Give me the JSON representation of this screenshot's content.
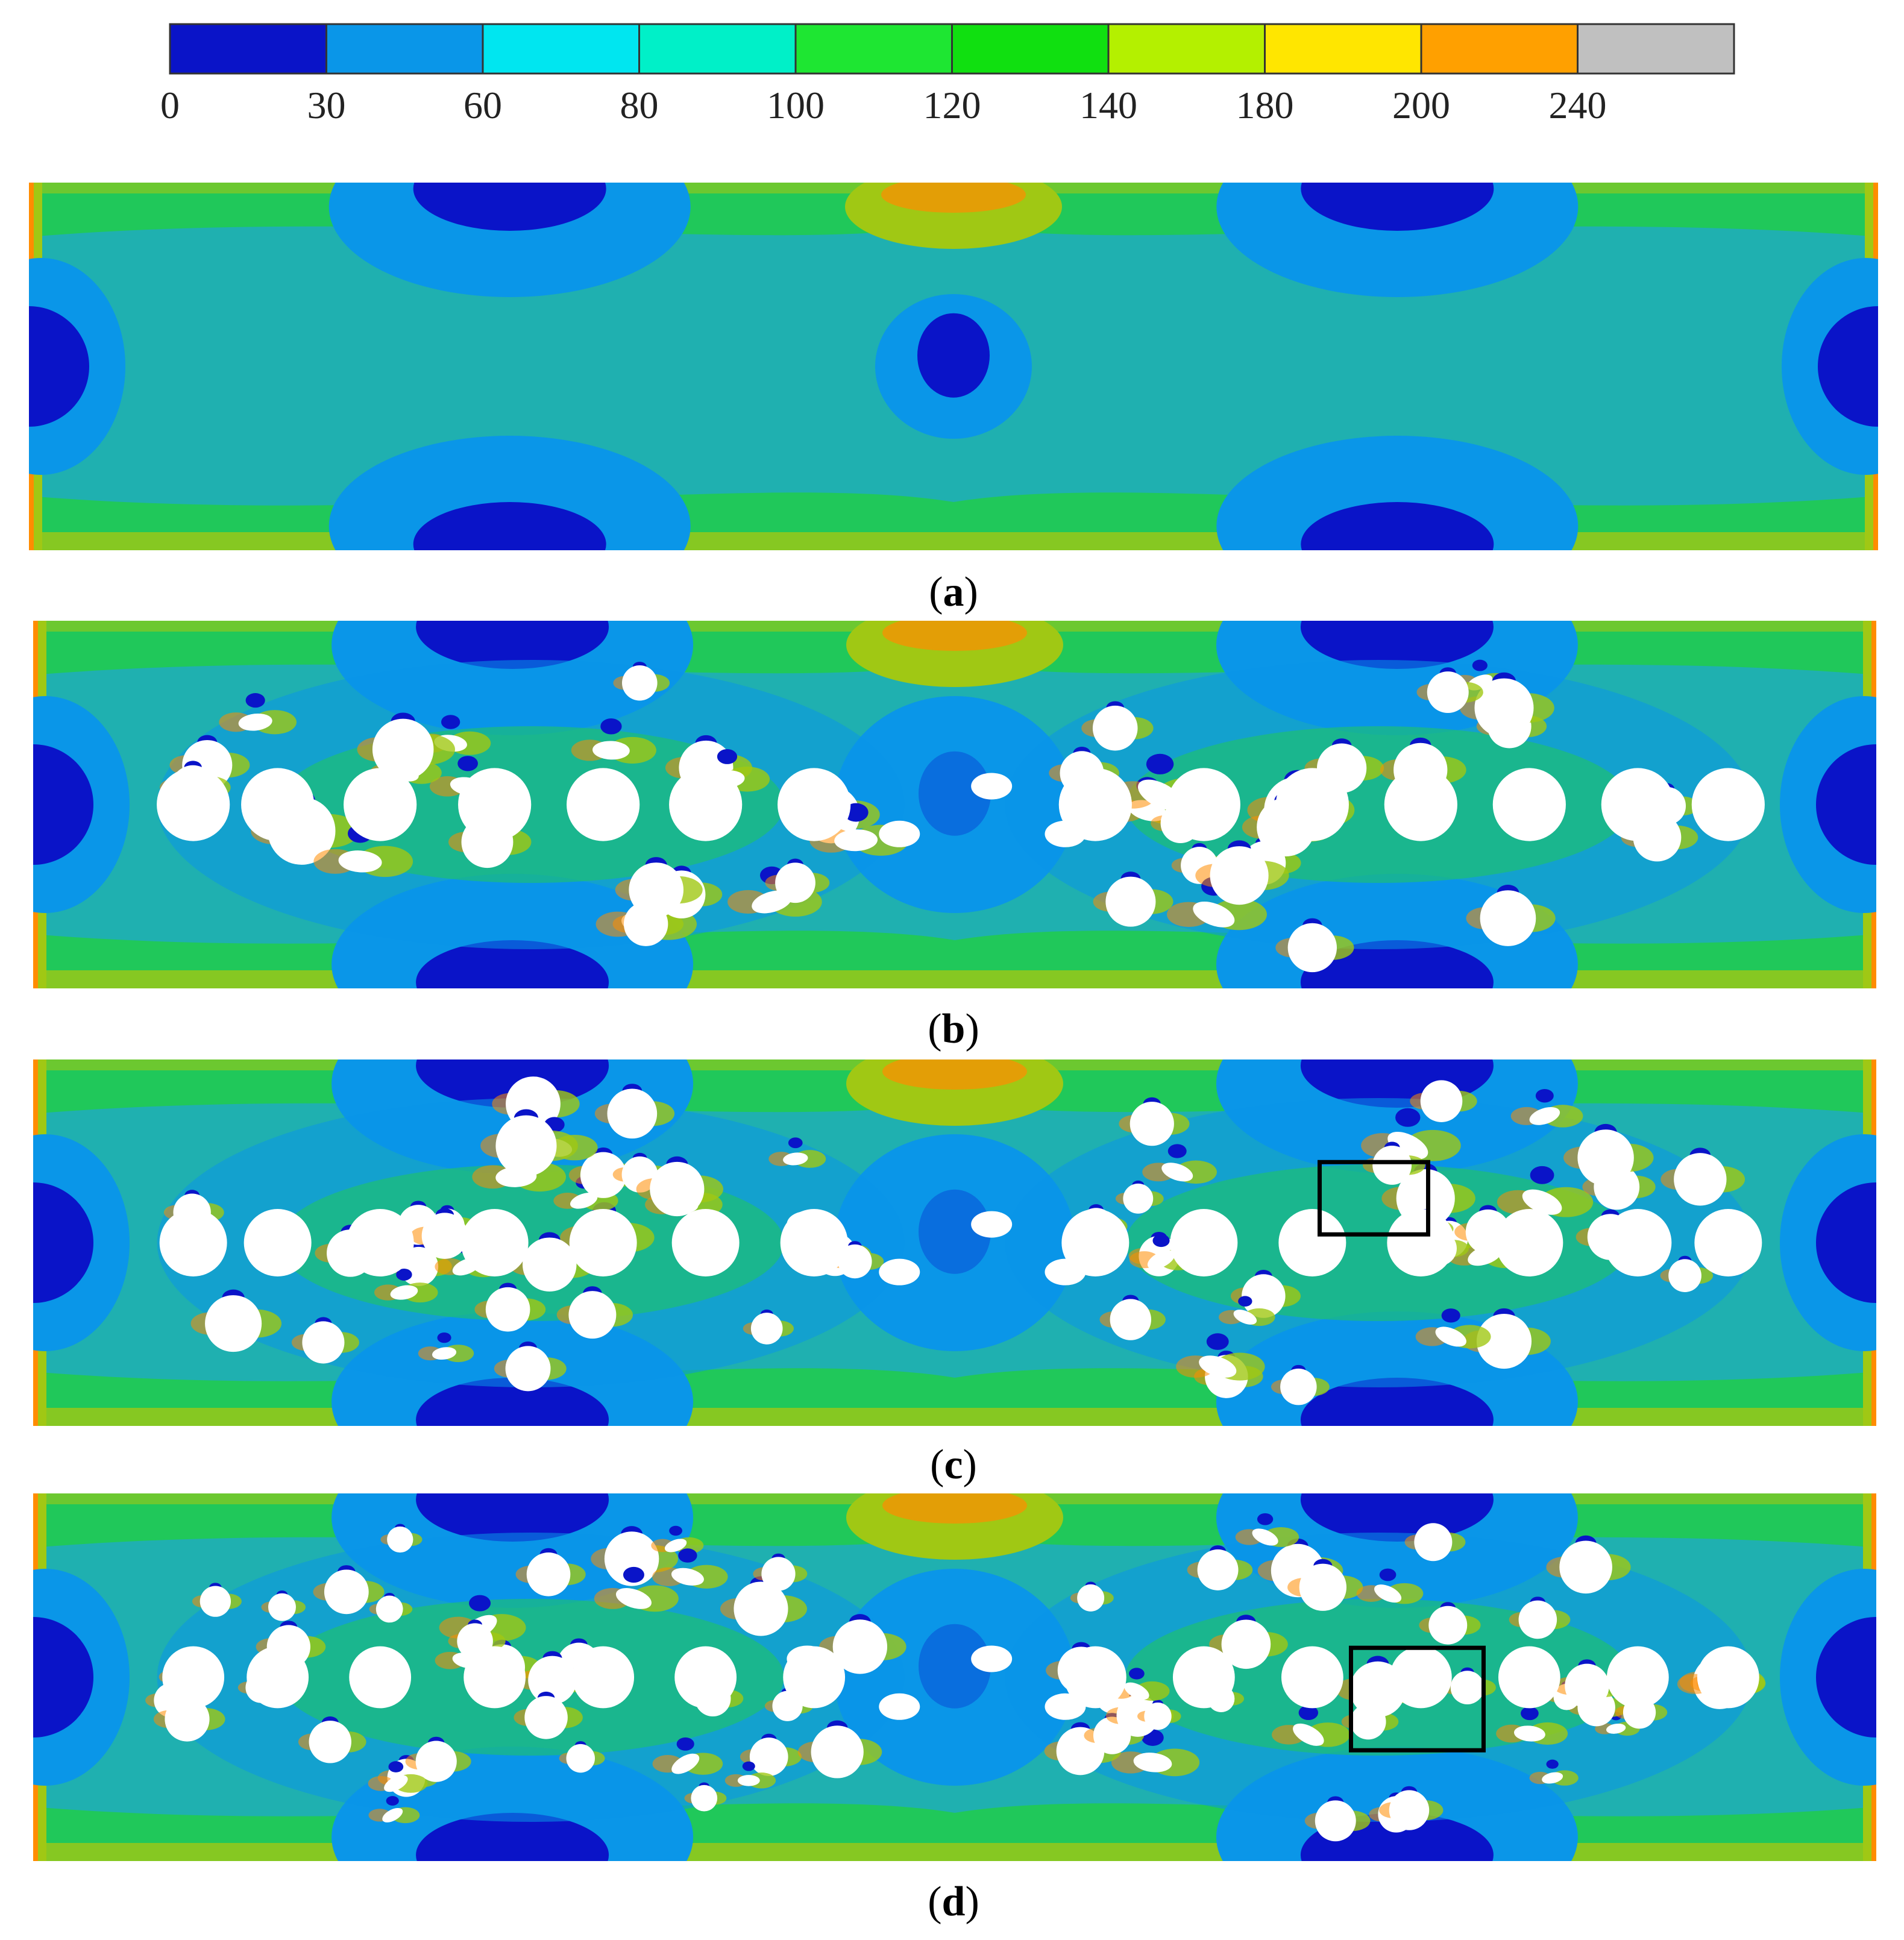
{
  "chart_data": {
    "type": "heatmap",
    "colorbar": {
      "ticks": [
        "0",
        "30",
        "60",
        "80",
        "100",
        "120",
        "140",
        "180",
        "200",
        "240"
      ],
      "levels": [
        {
          "from": 0,
          "to": 30,
          "color": "#0a14c8"
        },
        {
          "from": 30,
          "to": 60,
          "color": "#0a96e8"
        },
        {
          "from": 60,
          "to": 80,
          "color": "#00e6f0"
        },
        {
          "from": 80,
          "to": 100,
          "color": "#00f0c8"
        },
        {
          "from": 100,
          "to": 120,
          "color": "#1ee632"
        },
        {
          "from": 120,
          "to": 140,
          "color": "#10e010"
        },
        {
          "from": 140,
          "to": 180,
          "color": "#b4f000"
        },
        {
          "from": 180,
          "to": 200,
          "color": "#ffe600"
        },
        {
          "from": 200,
          "to": 240,
          "color": "#ffa000"
        },
        {
          "from": 240,
          "to": null,
          "color": "#c0c0c0"
        }
      ]
    },
    "panels": [
      {
        "id": "a",
        "label_open": "(",
        "label_letter": "a",
        "label_close": ")",
        "holes": 0,
        "highlight_box": false
      },
      {
        "id": "b",
        "label_open": "(",
        "label_letter": "b",
        "label_close": ")",
        "holes": 1,
        "highlight_box": false
      },
      {
        "id": "c",
        "label_open": "(",
        "label_letter": "c",
        "label_close": ")",
        "holes": 2,
        "highlight_box": true
      },
      {
        "id": "d",
        "label_open": "(",
        "label_letter": "d",
        "label_close": ")",
        "holes": 3,
        "highlight_box": true
      }
    ],
    "field_colors": {
      "background": "#0fa0a0",
      "low": "#0a14c8",
      "mid_low": "#0a96e8",
      "mid": "#1fb0b0",
      "mid_high": "#20c85a",
      "high": "#a0c814",
      "peak": "#ff8c00",
      "max": "#a0a0a0",
      "hole": "#ffffff"
    }
  }
}
